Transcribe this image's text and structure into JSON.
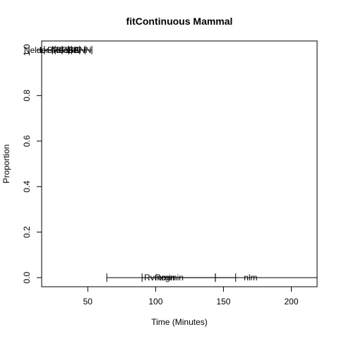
{
  "chart_data": {
    "type": "scatter",
    "title": "fitContinuous Mammal",
    "xlabel": "Time (Minutes)",
    "ylabel": "Proportion",
    "xlim": [
      16,
      219
    ],
    "ylim": [
      -0.04,
      1.04
    ],
    "xticks": [
      50,
      100,
      150,
      200
    ],
    "yticks": [
      0.0,
      0.2,
      0.4,
      0.6,
      0.8,
      1.0
    ],
    "ytick_labels": [
      "0.0",
      "0.2",
      "0.4",
      "0.6",
      "0.8",
      "1.0"
    ],
    "grid": false,
    "legend": "none",
    "series": [
      {
        "name": "Nelder-Mead",
        "x": 21,
        "y": 1.0,
        "xmin": 18,
        "xmax": 24
      },
      {
        "name": "L-BFGS-B",
        "x": 29,
        "y": 1.0,
        "xmin": 26,
        "xmax": 36
      },
      {
        "name": "BFGS",
        "x": 35,
        "y": 1.0,
        "xmin": 31,
        "xmax": 44
      },
      {
        "name": "CG",
        "x": 40,
        "y": 1.0,
        "xmin": 36,
        "xmax": 48
      },
      {
        "name": "SANN",
        "x": 44,
        "y": 1.0,
        "xmin": 38,
        "xmax": 53
      },
      {
        "name": "Rvmmin",
        "x": 103,
        "y": 0.0,
        "xmin": 64,
        "xmax": 144
      },
      {
        "name": "Rcgmin",
        "x": 110,
        "y": 0.0,
        "xmin": 90,
        "xmax": 159
      },
      {
        "name": "nlm",
        "x": 170,
        "y": 0.0,
        "xmin": 144,
        "xmax": 219
      }
    ]
  }
}
